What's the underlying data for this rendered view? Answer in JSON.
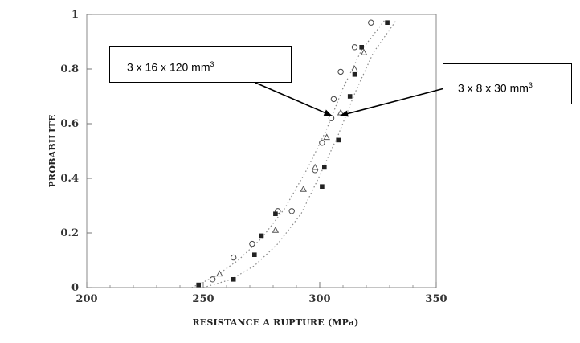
{
  "chart_data": {
    "type": "scatter",
    "xlabel": "RESISTANCE A RUPTURE (MPa)",
    "ylabel": "PROBABILITE",
    "xlim": [
      200,
      350
    ],
    "ylim": [
      0,
      1
    ],
    "x_ticks": [
      "200",
      "250",
      "300",
      "350"
    ],
    "y_ticks": [
      "0",
      "0.2",
      "0.4",
      "0.6",
      "0.8",
      "1"
    ],
    "grid": false,
    "series": [
      {
        "name": "3 x 16 x 120 mm",
        "marker": "open-circle",
        "points": [
          [
            254,
            0.03
          ],
          [
            263,
            0.11
          ],
          [
            271,
            0.16
          ],
          [
            282,
            0.28
          ],
          [
            288,
            0.28
          ],
          [
            298,
            0.43
          ],
          [
            301,
            0.53
          ],
          [
            305,
            0.62
          ],
          [
            306,
            0.69
          ],
          [
            309,
            0.79
          ],
          [
            315,
            0.88
          ],
          [
            322,
            0.97
          ]
        ]
      },
      {
        "name": "3 x 8 x 30 mm",
        "marker": "filled-square",
        "points": [
          [
            248,
            0.01
          ],
          [
            263,
            0.03
          ],
          [
            272,
            0.12
          ],
          [
            275,
            0.19
          ],
          [
            281,
            0.27
          ],
          [
            301,
            0.37
          ],
          [
            302,
            0.44
          ],
          [
            308,
            0.54
          ],
          [
            313,
            0.7
          ],
          [
            315,
            0.78
          ],
          [
            318,
            0.88
          ],
          [
            329,
            0.97
          ]
        ]
      },
      {
        "name": "",
        "marker": "open-triangle",
        "points": [
          [
            257,
            0.05
          ],
          [
            281,
            0.21
          ],
          [
            293,
            0.36
          ],
          [
            298,
            0.44
          ],
          [
            303,
            0.55
          ],
          [
            309,
            0.64
          ],
          [
            315,
            0.8
          ],
          [
            319,
            0.86
          ]
        ]
      }
    ],
    "curves": [
      {
        "x": [
          245,
          255,
          265,
          275,
          285,
          295,
          303,
          310,
          318,
          328
        ],
        "y": [
          0.0,
          0.04,
          0.1,
          0.18,
          0.29,
          0.44,
          0.58,
          0.73,
          0.87,
          0.98
        ]
      },
      {
        "x": [
          250,
          262,
          272,
          282,
          292,
          300,
          308,
          315,
          323,
          333
        ],
        "y": [
          0.0,
          0.03,
          0.08,
          0.16,
          0.27,
          0.41,
          0.56,
          0.71,
          0.86,
          0.98
        ]
      }
    ],
    "annotations": [
      {
        "id": "a",
        "text": "3 x 16 x 120 mm",
        "sup": "3",
        "arrow_to": [
          305,
          0.63
        ]
      },
      {
        "id": "b",
        "text": "3 x 8 x 30 mm",
        "sup": "3",
        "arrow_to": [
          309,
          0.63
        ]
      }
    ]
  }
}
